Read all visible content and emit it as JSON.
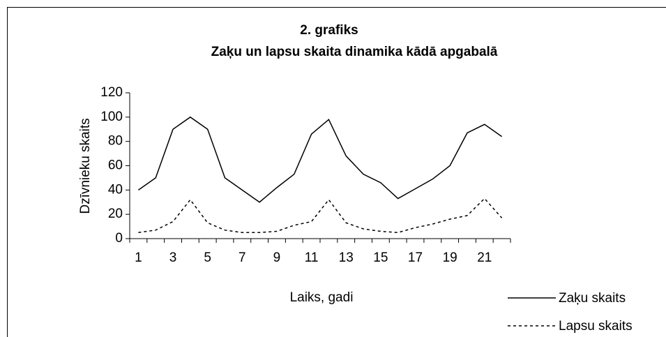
{
  "chart_data": {
    "type": "line",
    "title": "2. grafiks",
    "subtitle": "Zaķu un lapsu skaita dinamika kādā apgabalā",
    "x_label": "Laiks, gadi",
    "y_label": "Dzīvnieku skaits",
    "categories": [
      1,
      null,
      3,
      null,
      5,
      null,
      7,
      null,
      9,
      null,
      11,
      null,
      13,
      null,
      15,
      null,
      17,
      null,
      19,
      null,
      21,
      null
    ],
    "series": [
      {
        "name": "Zaķu skaits",
        "color": "#000000",
        "dash": "solid",
        "values": [
          40,
          50,
          90,
          100,
          90,
          50,
          40,
          30,
          42,
          53,
          86,
          98,
          68,
          53,
          46,
          33,
          41,
          49,
          60,
          87,
          94,
          84
        ]
      },
      {
        "name": "Lapsu skaits",
        "color": "#000000",
        "dash": "dotted",
        "values": [
          5,
          7,
          14,
          32,
          13,
          7,
          5,
          5,
          6,
          11,
          14,
          32,
          13,
          8,
          6,
          5,
          9,
          12,
          16,
          19,
          33,
          17
        ]
      }
    ],
    "ylim": [
      0,
      120
    ],
    "yticks": [
      0,
      20,
      40,
      60,
      80,
      100,
      120
    ],
    "grid": false,
    "legend": "bottom-right"
  }
}
